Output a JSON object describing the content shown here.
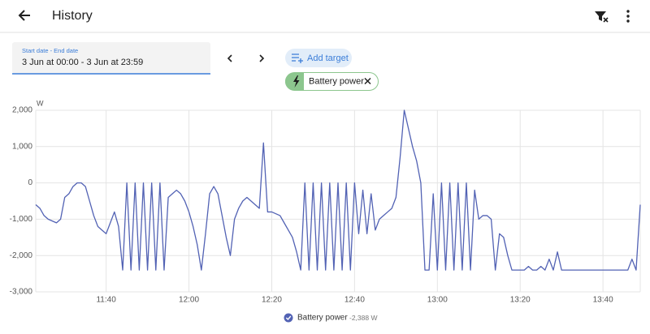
{
  "header": {
    "title": "History"
  },
  "date_field": {
    "label": "Start date - End date",
    "value": "3 Jun at 00:00 - 3 Jun at 23:59"
  },
  "add_target": "Add target",
  "target_chip": "Battery power",
  "chart_data": {
    "type": "line",
    "y_label": "W",
    "xlim": [
      "11:23",
      "13:49"
    ],
    "xticks": [
      "11:40",
      "12:00",
      "12:20",
      "12:40",
      "13:00",
      "13:20",
      "13:40"
    ],
    "ylim": [
      -3000,
      2000
    ],
    "yticks": [
      {
        "value": 2000,
        "label": "2,000"
      },
      {
        "value": 1000,
        "label": "1,000"
      },
      0,
      {
        "value": -1000,
        "label": "-1,000"
      },
      {
        "value": -2000,
        "label": "-2,000"
      },
      {
        "value": -3000,
        "label": "-3,000"
      }
    ],
    "grid": true,
    "x": [
      "11:23",
      "11:24",
      "11:25",
      "11:26",
      "11:27",
      "11:28",
      "11:29",
      "11:30",
      "11:31",
      "11:32",
      "11:33",
      "11:34",
      "11:35",
      "11:36",
      "11:37",
      "11:38",
      "11:39",
      "11:40",
      "11:41",
      "11:42",
      "11:43",
      "11:44",
      "11:45",
      "11:46",
      "11:47",
      "11:48",
      "11:49",
      "11:50",
      "11:51",
      "11:52",
      "11:53",
      "11:54",
      "11:55",
      "11:56",
      "11:57",
      "11:58",
      "11:59",
      "12:00",
      "12:01",
      "12:02",
      "12:03",
      "12:04",
      "12:05",
      "12:06",
      "12:07",
      "12:08",
      "12:09",
      "12:10",
      "12:11",
      "12:12",
      "12:13",
      "12:14",
      "12:15",
      "12:16",
      "12:17",
      "12:18",
      "12:19",
      "12:20",
      "12:21",
      "12:22",
      "12:23",
      "12:24",
      "12:25",
      "12:26",
      "12:27",
      "12:28",
      "12:29",
      "12:30",
      "12:31",
      "12:32",
      "12:33",
      "12:34",
      "12:35",
      "12:36",
      "12:37",
      "12:38",
      "12:39",
      "12:40",
      "12:41",
      "12:42",
      "12:43",
      "12:44",
      "12:45",
      "12:46",
      "12:47",
      "12:48",
      "12:49",
      "12:50",
      "12:51",
      "12:52",
      "12:53",
      "12:54",
      "12:55",
      "12:56",
      "12:57",
      "12:58",
      "12:59",
      "13:00",
      "13:01",
      "13:02",
      "13:03",
      "13:04",
      "13:05",
      "13:06",
      "13:07",
      "13:08",
      "13:09",
      "13:10",
      "13:11",
      "13:12",
      "13:13",
      "13:14",
      "13:15",
      "13:16",
      "13:17",
      "13:18",
      "13:19",
      "13:20",
      "13:21",
      "13:22",
      "13:23",
      "13:24",
      "13:25",
      "13:26",
      "13:27",
      "13:28",
      "13:29",
      "13:30",
      "13:31",
      "13:32",
      "13:33",
      "13:34",
      "13:35",
      "13:36",
      "13:37",
      "13:38",
      "13:39",
      "13:40",
      "13:41",
      "13:42",
      "13:43",
      "13:44",
      "13:45",
      "13:46",
      "13:47",
      "13:48",
      "13:49"
    ],
    "series": [
      {
        "name": "Battery power",
        "color": "#5262b4",
        "legend_value": "-2,388 W",
        "values": [
          -600,
          -700,
          -900,
          -1000,
          -1050,
          -1100,
          -1000,
          -400,
          -300,
          -100,
          0,
          0,
          -100,
          -500,
          -900,
          -1200,
          -1300,
          -1400,
          -1100,
          -800,
          -1200,
          -2400,
          0,
          -2400,
          0,
          -2400,
          0,
          -2400,
          0,
          -2400,
          0,
          -2400,
          -400,
          -300,
          -200,
          -300,
          -500,
          -800,
          -1200,
          -1700,
          -2400,
          -1400,
          -300,
          -100,
          -300,
          -900,
          -1500,
          -2000,
          -1000,
          -700,
          -500,
          -400,
          -500,
          -600,
          -700,
          1100,
          -800,
          -800,
          -850,
          -900,
          -1100,
          -1300,
          -1500,
          -1900,
          -2400,
          0,
          -2400,
          0,
          -2400,
          0,
          -2400,
          0,
          -2400,
          0,
          -2400,
          0,
          -2400,
          0,
          -1400,
          -200,
          -1400,
          -300,
          -1300,
          -1000,
          -900,
          -800,
          -700,
          -400,
          700,
          2000,
          1500,
          1000,
          600,
          0,
          -2400,
          -2400,
          -300,
          -2400,
          0,
          -2400,
          0,
          -2400,
          0,
          -2400,
          0,
          -2400,
          -200,
          -1000,
          -900,
          -900,
          -1000,
          -2400,
          -1400,
          -1500,
          -2000,
          -2400,
          -2400,
          -2400,
          -2400,
          -2300,
          -2400,
          -2400,
          -2300,
          -2400,
          -2100,
          -2400,
          -1900,
          -2400,
          -2400,
          -2400,
          -2400,
          -2400,
          -2400,
          -2400,
          -2400,
          -2400,
          -2400,
          -2400,
          -2400,
          -2400,
          -2400,
          -2400,
          -2400,
          -2400,
          -2100,
          -2400,
          -600
        ]
      }
    ]
  }
}
